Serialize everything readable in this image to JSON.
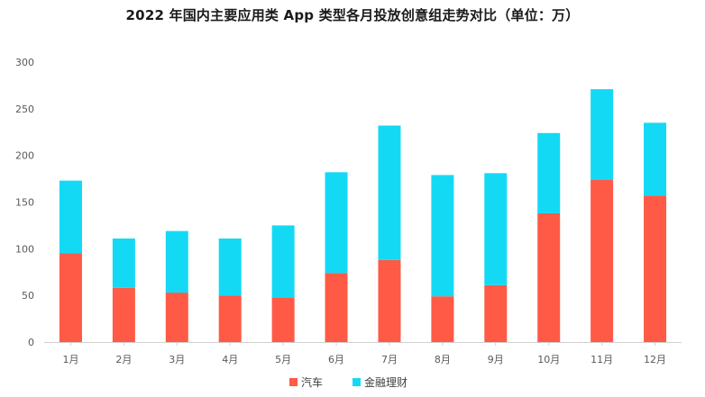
{
  "chart_data": {
    "type": "bar",
    "stacked": true,
    "title": "2022 年国内主要应用类 App 类型各月投放创意组走势对比（单位：万）",
    "xlabel": "",
    "ylabel": "",
    "categories": [
      "1月",
      "2月",
      "3月",
      "4月",
      "5月",
      "6月",
      "7月",
      "8月",
      "9月",
      "10月",
      "11月",
      "12月"
    ],
    "series": [
      {
        "name": "汽车",
        "color": "#ff5a45",
        "values": [
          95,
          58,
          53,
          50,
          48,
          74,
          88,
          49,
          61,
          138,
          174,
          157
        ]
      },
      {
        "name": "金融理财",
        "color": "#14d9f5",
        "values": [
          78,
          53,
          66,
          61,
          77,
          108,
          144,
          130,
          120,
          86,
          97,
          78
        ]
      }
    ],
    "ylim": [
      0,
      300
    ],
    "yticks": [
      0,
      50,
      100,
      150,
      200,
      250,
      300
    ],
    "grid": false,
    "legend_position": "bottom-center"
  }
}
